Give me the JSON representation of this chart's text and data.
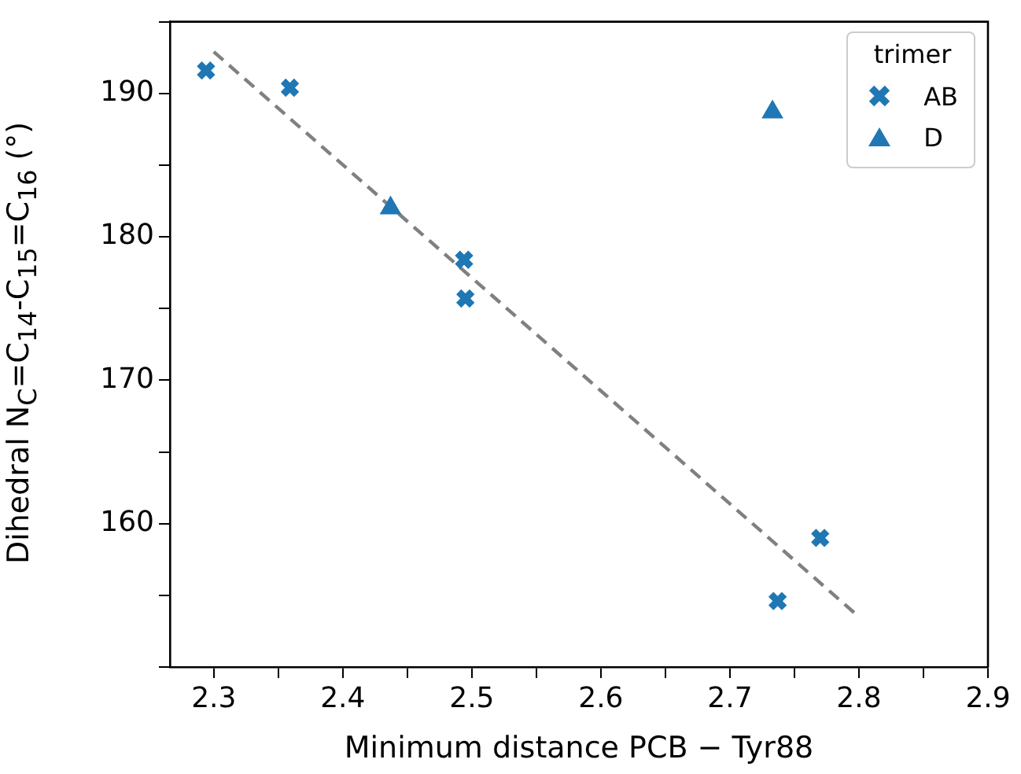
{
  "chart_data": {
    "type": "scatter",
    "xlabel": "Minimum distance PCB − Tyr88",
    "ylabel": "Dihedral N$_{C}$=C$_{14}$-C$_{15}$=C$_{16}$ (°)",
    "legend_title": "trimer",
    "legend": "top right",
    "grid": false,
    "xlim": [
      2.266,
      2.9
    ],
    "xticks": [
      2.3,
      {
        "value": 2.35,
        "label": null
      },
      2.4,
      {
        "value": 2.45,
        "label": null
      },
      2.5,
      {
        "value": 2.55,
        "label": null
      },
      2.6,
      {
        "value": 2.65,
        "label": null
      },
      2.7,
      {
        "value": 2.75,
        "label": null
      },
      2.8,
      {
        "value": 2.85,
        "label": null
      },
      2.9
    ],
    "ylim": [
      150,
      195
    ],
    "yticks": [
      {
        "value": 150,
        "label": null
      },
      {
        "value": 155,
        "label": null
      },
      160,
      {
        "value": 165,
        "label": null
      },
      170,
      {
        "value": 175,
        "label": null
      },
      180,
      {
        "value": 185,
        "label": null
      },
      190,
      {
        "value": 195,
        "label": null
      }
    ],
    "series": [
      {
        "name": "AB",
        "color": "#1f77b4",
        "marker": "cross",
        "x": [
          2.294,
          2.359,
          2.494,
          2.495,
          2.737,
          2.77
        ],
        "values": [
          191.6,
          190.4,
          178.4,
          175.7,
          154.6,
          159.0
        ]
      },
      {
        "name": "D",
        "color": "#1f77b4",
        "marker": "triangle",
        "x": [
          2.437,
          2.733
        ],
        "values": [
          182.0,
          188.7
        ]
      },
      {
        "type": "line",
        "color": "#808080",
        "marker": "none",
        "line_style": "dashed",
        "x": [
          2.3,
          2.8
        ],
        "values": [
          192.9,
          153.5
        ]
      }
    ]
  }
}
